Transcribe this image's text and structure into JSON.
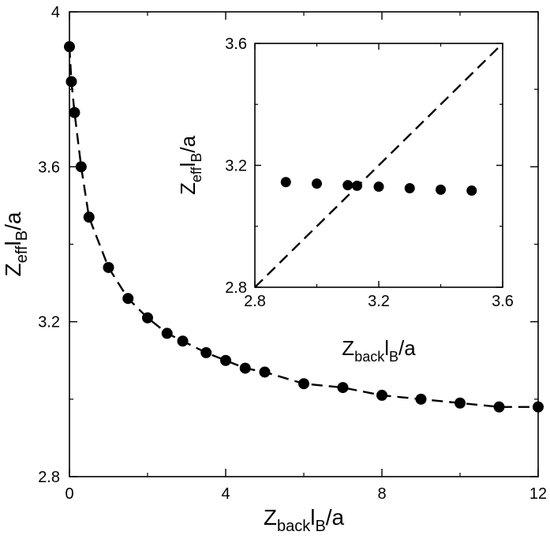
{
  "chart_data": [
    {
      "type": "scatter",
      "panel": "main",
      "xlabel": {
        "main": "Z",
        "sub": "back",
        "rest": "l",
        "sub2": "B",
        "tail": "/a"
      },
      "ylabel": {
        "main": "Z",
        "sub": "eff",
        "rest": "l",
        "sub2": "B",
        "tail": "/a"
      },
      "xlim": [
        0,
        12
      ],
      "ylim": [
        2.8,
        4.0
      ],
      "xticks": [
        0,
        4,
        8,
        12
      ],
      "xtick_labels": [
        "0",
        "4",
        "8",
        "12"
      ],
      "yticks": [
        2.8,
        3.2,
        3.6,
        4.0
      ],
      "ytick_labels": [
        "2.8",
        "3.2",
        "3.6",
        "4"
      ],
      "grid": false,
      "series": [
        {
          "style": "filled-circles",
          "color": "#000000",
          "x": [
            0,
            0.05,
            0.13,
            0.3,
            0.5,
            1.0,
            1.5,
            2.0,
            2.5,
            2.9,
            3.5,
            4.0,
            4.5,
            5.0,
            6.0,
            7.0,
            8.0,
            9.0,
            10.0,
            11.0,
            12.0
          ],
          "y": [
            3.91,
            3.82,
            3.74,
            3.6,
            3.47,
            3.34,
            3.26,
            3.21,
            3.17,
            3.15,
            3.12,
            3.1,
            3.08,
            3.07,
            3.04,
            3.03,
            3.01,
            3.0,
            2.99,
            2.98,
            2.98
          ]
        },
        {
          "style": "dashed-line",
          "color": "#000000",
          "x": [
            0,
            0.05,
            0.13,
            0.3,
            0.5,
            1.0,
            1.5,
            2.0,
            2.5,
            2.9,
            3.5,
            4.0,
            4.5,
            5.0,
            6.0,
            7.0,
            8.0,
            9.0,
            10.0,
            11.0,
            12.0
          ],
          "y": [
            3.91,
            3.82,
            3.74,
            3.6,
            3.47,
            3.34,
            3.26,
            3.21,
            3.17,
            3.15,
            3.12,
            3.1,
            3.08,
            3.07,
            3.04,
            3.03,
            3.01,
            3.0,
            2.99,
            2.98,
            2.98
          ]
        }
      ]
    },
    {
      "type": "scatter",
      "panel": "inset",
      "xlabel": {
        "main": "Z",
        "sub": "back",
        "rest": "l",
        "sub2": "B",
        "tail": "/a"
      },
      "ylabel": {
        "main": "Z",
        "sub": "eff",
        "rest": "l",
        "sub2": "B",
        "tail": "/a"
      },
      "xlim": [
        2.8,
        3.6
      ],
      "ylim": [
        2.8,
        3.6
      ],
      "xticks": [
        2.8,
        3.2,
        3.6
      ],
      "xtick_labels": [
        "2.8",
        "3.2",
        "3.6"
      ],
      "yticks": [
        2.8,
        3.2,
        3.6
      ],
      "ytick_labels": [
        "2.8",
        "3.2",
        "3.6"
      ],
      "grid": false,
      "series": [
        {
          "style": "filled-circles",
          "color": "#000000",
          "x": [
            2.9,
            3.0,
            3.1,
            3.13,
            3.2,
            3.3,
            3.4,
            3.5
          ],
          "y": [
            3.145,
            3.14,
            3.135,
            3.133,
            3.13,
            3.125,
            3.12,
            3.117
          ]
        },
        {
          "style": "dashed-line",
          "color": "#000000",
          "x": [
            2.8,
            3.6
          ],
          "y": [
            2.8,
            3.6
          ]
        }
      ]
    }
  ]
}
